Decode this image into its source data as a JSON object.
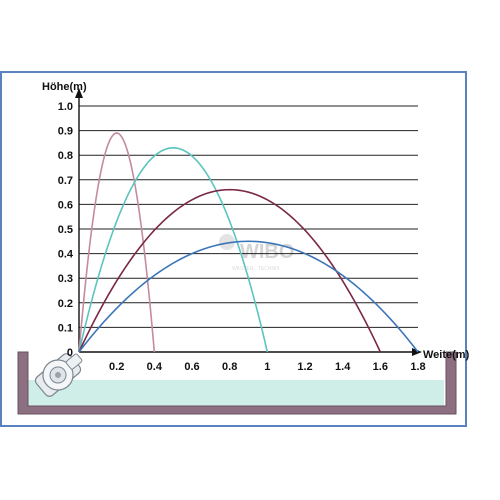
{
  "chart_data": {
    "type": "line",
    "xlabel": "Weite(m)",
    "ylabel": "Höhe(m)",
    "xlim": [
      0,
      1.8
    ],
    "ylim": [
      0,
      1.0
    ],
    "x_ticks": [
      "0.2",
      "0.4",
      "0.6",
      "0.8",
      "1",
      "1.2",
      "1.4",
      "1.6",
      "1.8"
    ],
    "y_ticks": [
      "0",
      "0.1",
      "0.2",
      "0.3",
      "0.4",
      "0.5",
      "0.6",
      "0.7",
      "0.8",
      "0.9",
      "1.0"
    ],
    "grid": "horizontal",
    "series": [
      {
        "color": "#c48aa0",
        "range": 0.4,
        "peak_x": 0.2,
        "peak_y": 0.89
      },
      {
        "color": "#5cc4be",
        "range": 1.0,
        "peak_x": 0.5,
        "peak_y": 0.83
      },
      {
        "color": "#7a2848",
        "range": 1.6,
        "peak_x": 0.8,
        "peak_y": 0.66
      },
      {
        "color": "#3d76b8",
        "range": 1.8,
        "peak_x": 0.9,
        "peak_y": 0.45
      }
    ]
  },
  "watermark": {
    "text": "WIBO",
    "subtext": "WASSER · TECHNIK"
  },
  "colors": {
    "border": "#5a82be",
    "basin": "#8c6f80",
    "water": "#cfeee8",
    "grid": "#222222"
  }
}
